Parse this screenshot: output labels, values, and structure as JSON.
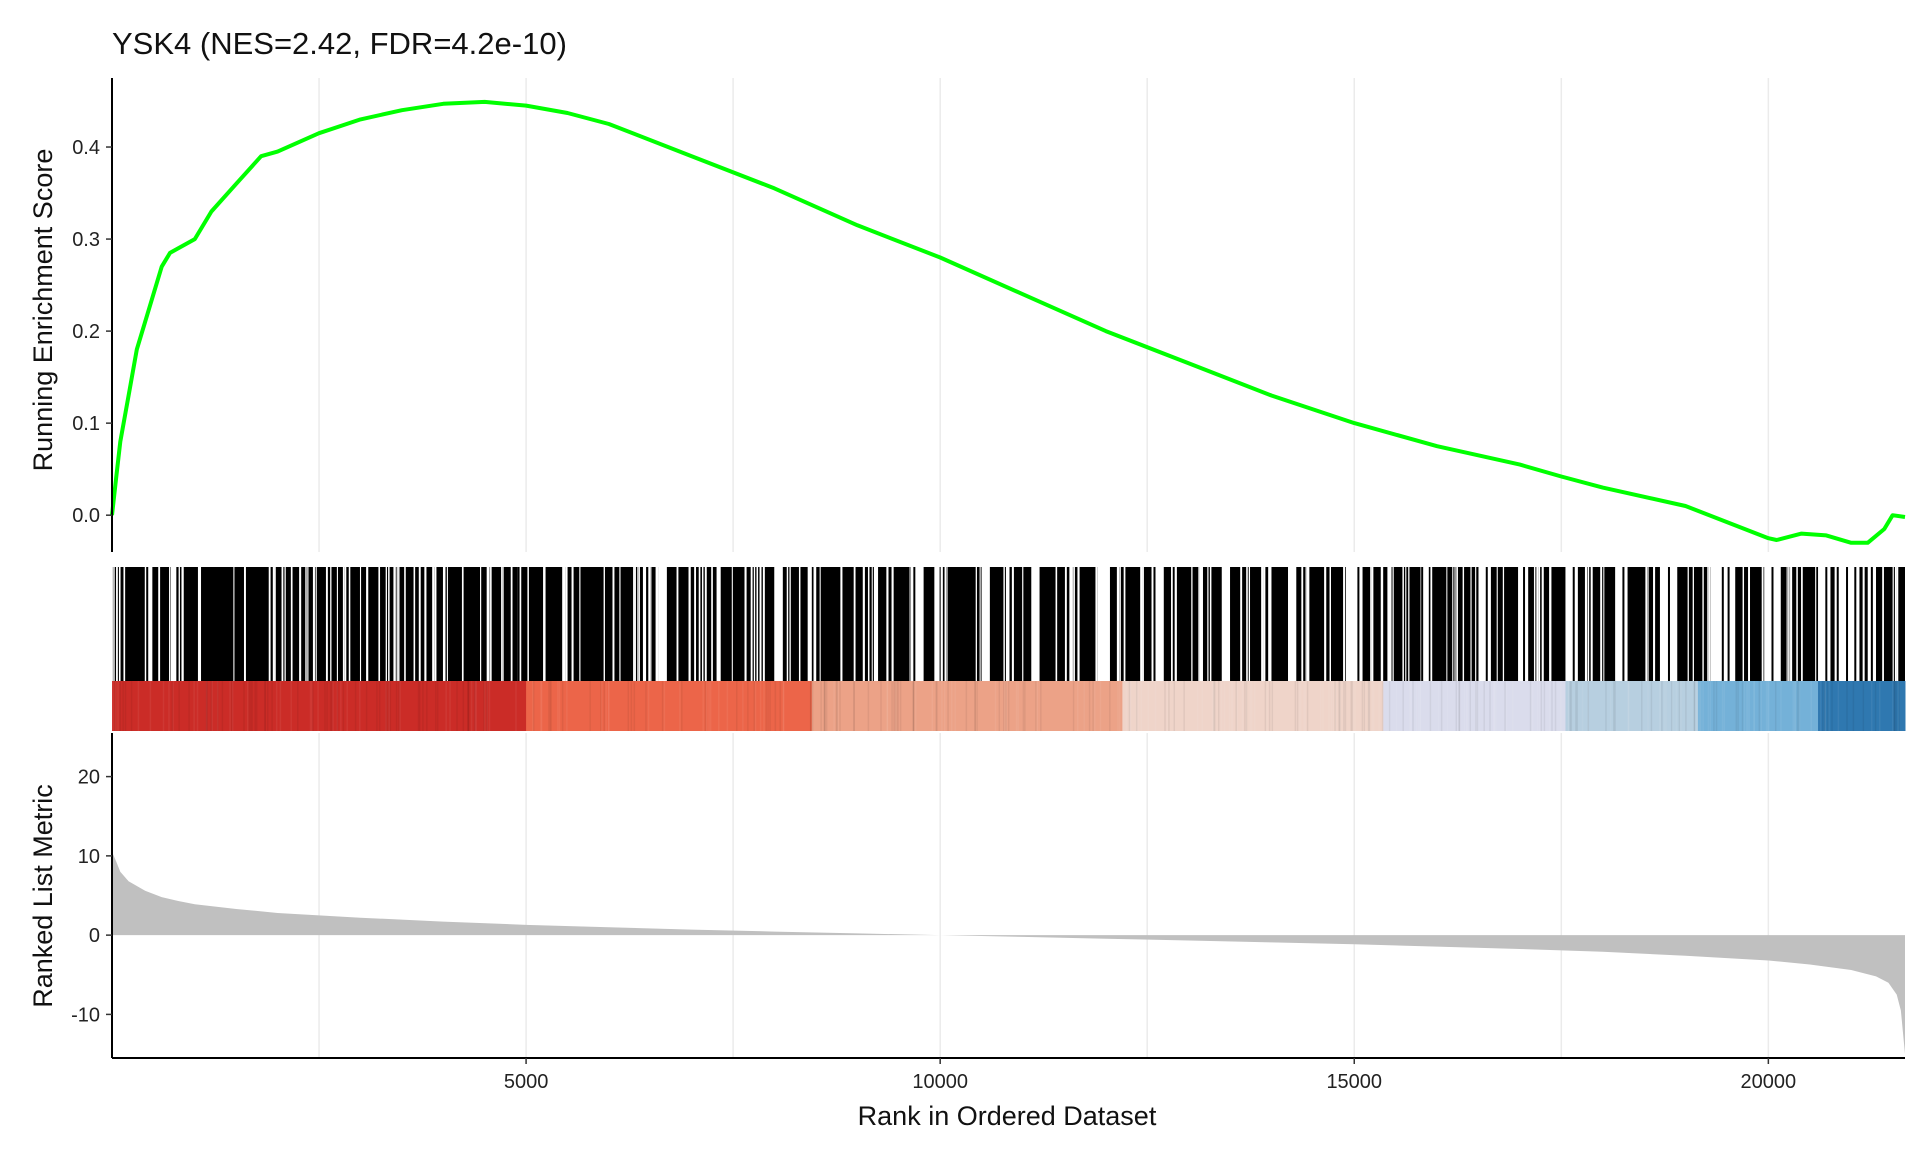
{
  "chart_data": {
    "type": "line",
    "title": "YSK4 (NES=2.42, FDR=4.2e-10)",
    "xlabel": "Rank in Ordered Dataset",
    "n_genes": 21650,
    "x_ticks": [
      5000,
      10000,
      15000,
      20000
    ],
    "x_gridlines": [
      2500,
      5000,
      7500,
      10000,
      12500,
      15000,
      17500,
      20000
    ],
    "enrichment": {
      "ylabel": "Running Enrichment Score",
      "ylim": [
        -0.04,
        0.475
      ],
      "y_ticks": [
        0.0,
        0.1,
        0.2,
        0.3,
        0.4
      ],
      "y_tick_labels": [
        "0.0",
        "0.1",
        "0.2",
        "0.3",
        "0.4"
      ],
      "line_color": "#00ff00",
      "x": [
        0,
        50,
        100,
        200,
        300,
        400,
        500,
        600,
        700,
        800,
        1000,
        1200,
        1500,
        1800,
        2000,
        2500,
        3000,
        3500,
        4000,
        4500,
        5000,
        5500,
        6000,
        7000,
        8000,
        9000,
        10000,
        11000,
        12000,
        13000,
        14000,
        15000,
        16000,
        17000,
        17500,
        18000,
        19000,
        20000,
        20100,
        20400,
        20700,
        21000,
        21200,
        21400,
        21500,
        21650
      ],
      "y": [
        0.0,
        0.04,
        0.08,
        0.13,
        0.18,
        0.21,
        0.24,
        0.27,
        0.285,
        0.29,
        0.3,
        0.33,
        0.36,
        0.39,
        0.395,
        0.415,
        0.43,
        0.44,
        0.447,
        0.449,
        0.445,
        0.437,
        0.425,
        0.39,
        0.355,
        0.315,
        0.28,
        0.24,
        0.2,
        0.165,
        0.13,
        0.1,
        0.075,
        0.055,
        0.042,
        0.03,
        0.01,
        -0.025,
        -0.027,
        -0.02,
        -0.022,
        -0.03,
        -0.03,
        -0.015,
        0.0,
        -0.002
      ]
    },
    "hit_bands": [
      [
        0,
        4900
      ],
      [
        4900,
        6600
      ],
      [
        6700,
        7300
      ],
      [
        7350,
        8000
      ],
      [
        8100,
        8400
      ],
      [
        8450,
        8800
      ],
      [
        8820,
        9200
      ],
      [
        9250,
        9700
      ],
      [
        9800,
        10500
      ],
      [
        10600,
        11100
      ],
      [
        11200,
        11900
      ],
      [
        12050,
        12600
      ],
      [
        12700,
        13400
      ],
      [
        13500,
        14200
      ],
      [
        14300,
        14900
      ],
      [
        15100,
        15400
      ],
      [
        15450,
        15800
      ],
      [
        15900,
        16500
      ],
      [
        16650,
        17000
      ],
      [
        17100,
        17550
      ],
      [
        17700,
        18150
      ],
      [
        18300,
        18700
      ],
      [
        18900,
        19300
      ],
      [
        19600,
        19950
      ],
      [
        20150,
        20600
      ],
      [
        20750,
        20850
      ],
      [
        21100,
        21200
      ],
      [
        21300,
        21650
      ]
    ],
    "hit_isolated": [
      15050,
      15820,
      16600,
      17050,
      17650,
      18250,
      18800,
      19450,
      19520,
      19800,
      20050,
      20700,
      20950,
      21050,
      21250
    ],
    "heatmap": {
      "x_start": [
        0,
        5000,
        8450,
        12200,
        15350,
        17550,
        19150,
        20600
      ],
      "x_end": [
        5000,
        8450,
        12200,
        15350,
        17550,
        19150,
        20600,
        21650
      ],
      "colors": [
        "#cb2c27",
        "#ec6549",
        "#eca287",
        "#efd4c9",
        "#dadcec",
        "#b7cfe0",
        "#74b1d8",
        "#2f78b0"
      ]
    },
    "ranked_metric": {
      "ylabel": "Ranked List Metric",
      "ylim": [
        -15.5,
        25.5
      ],
      "y_ticks": [
        -10,
        0,
        10,
        20
      ],
      "y_tick_labels": [
        "-10",
        "0",
        "10",
        "20"
      ],
      "fill_color": "#c0c0c0",
      "x": [
        0,
        50,
        100,
        200,
        400,
        600,
        800,
        1000,
        1500,
        2000,
        3000,
        4000,
        5000,
        6000,
        7000,
        8000,
        9000,
        10000,
        11000,
        12000,
        13000,
        14000,
        15000,
        16000,
        17000,
        18000,
        19000,
        20000,
        20500,
        21000,
        21300,
        21450,
        21550,
        21600,
        21650
      ],
      "y": [
        10.5,
        9.3,
        8.0,
        6.8,
        5.6,
        4.8,
        4.3,
        3.9,
        3.3,
        2.8,
        2.2,
        1.7,
        1.3,
        1.0,
        0.7,
        0.45,
        0.22,
        0.0,
        -0.22,
        -0.45,
        -0.68,
        -0.92,
        -1.15,
        -1.45,
        -1.75,
        -2.1,
        -2.6,
        -3.2,
        -3.7,
        -4.4,
        -5.2,
        -6.0,
        -7.5,
        -9.5,
        -15.0
      ]
    }
  }
}
